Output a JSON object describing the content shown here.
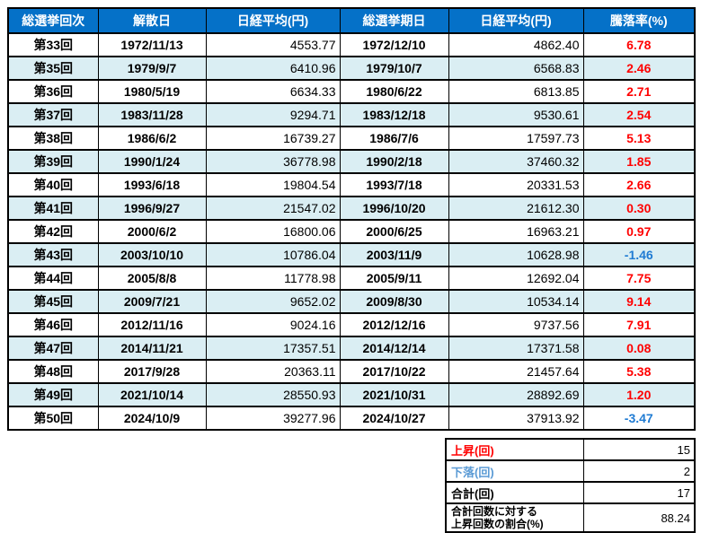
{
  "colors": {
    "header_bg": "#0571C8",
    "header_text": "#FFFFFF",
    "stripe_bg": "#DAEEF3",
    "up_text": "#FF0000",
    "down_text": "#1F7BD3",
    "down_label": "#5B9BD5",
    "border": "#000000"
  },
  "chart_data": {
    "type": "table",
    "columns": [
      "総選挙回次",
      "解散日",
      "日経平均(円)",
      "総選挙期日",
      "日経平均(円)",
      "騰落率(%)"
    ],
    "rows": [
      {
        "no": "第33回",
        "dissolution_date": "1972/11/13",
        "nikkei_dissolution": "4553.77",
        "election_date": "1972/12/10",
        "nikkei_election": "4862.40",
        "change_pct": "6.78",
        "direction": "up"
      },
      {
        "no": "第35回",
        "dissolution_date": "1979/9/7",
        "nikkei_dissolution": "6410.96",
        "election_date": "1979/10/7",
        "nikkei_election": "6568.83",
        "change_pct": "2.46",
        "direction": "up"
      },
      {
        "no": "第36回",
        "dissolution_date": "1980/5/19",
        "nikkei_dissolution": "6634.33",
        "election_date": "1980/6/22",
        "nikkei_election": "6813.85",
        "change_pct": "2.71",
        "direction": "up"
      },
      {
        "no": "第37回",
        "dissolution_date": "1983/11/28",
        "nikkei_dissolution": "9294.71",
        "election_date": "1983/12/18",
        "nikkei_election": "9530.61",
        "change_pct": "2.54",
        "direction": "up"
      },
      {
        "no": "第38回",
        "dissolution_date": "1986/6/2",
        "nikkei_dissolution": "16739.27",
        "election_date": "1986/7/6",
        "nikkei_election": "17597.73",
        "change_pct": "5.13",
        "direction": "up"
      },
      {
        "no": "第39回",
        "dissolution_date": "1990/1/24",
        "nikkei_dissolution": "36778.98",
        "election_date": "1990/2/18",
        "nikkei_election": "37460.32",
        "change_pct": "1.85",
        "direction": "up"
      },
      {
        "no": "第40回",
        "dissolution_date": "1993/6/18",
        "nikkei_dissolution": "19804.54",
        "election_date": "1993/7/18",
        "nikkei_election": "20331.53",
        "change_pct": "2.66",
        "direction": "up"
      },
      {
        "no": "第41回",
        "dissolution_date": "1996/9/27",
        "nikkei_dissolution": "21547.02",
        "election_date": "1996/10/20",
        "nikkei_election": "21612.30",
        "change_pct": "0.30",
        "direction": "up"
      },
      {
        "no": "第42回",
        "dissolution_date": "2000/6/2",
        "nikkei_dissolution": "16800.06",
        "election_date": "2000/6/25",
        "nikkei_election": "16963.21",
        "change_pct": "0.97",
        "direction": "up"
      },
      {
        "no": "第43回",
        "dissolution_date": "2003/10/10",
        "nikkei_dissolution": "10786.04",
        "election_date": "2003/11/9",
        "nikkei_election": "10628.98",
        "change_pct": "-1.46",
        "direction": "down"
      },
      {
        "no": "第44回",
        "dissolution_date": "2005/8/8",
        "nikkei_dissolution": "11778.98",
        "election_date": "2005/9/11",
        "nikkei_election": "12692.04",
        "change_pct": "7.75",
        "direction": "up"
      },
      {
        "no": "第45回",
        "dissolution_date": "2009/7/21",
        "nikkei_dissolution": "9652.02",
        "election_date": "2009/8/30",
        "nikkei_election": "10534.14",
        "change_pct": "9.14",
        "direction": "up"
      },
      {
        "no": "第46回",
        "dissolution_date": "2012/11/16",
        "nikkei_dissolution": "9024.16",
        "election_date": "2012/12/16",
        "nikkei_election": "9737.56",
        "change_pct": "7.91",
        "direction": "up"
      },
      {
        "no": "第47回",
        "dissolution_date": "2014/11/21",
        "nikkei_dissolution": "17357.51",
        "election_date": "2014/12/14",
        "nikkei_election": "17371.58",
        "change_pct": "0.08",
        "direction": "up"
      },
      {
        "no": "第48回",
        "dissolution_date": "2017/9/28",
        "nikkei_dissolution": "20363.11",
        "election_date": "2017/10/22",
        "nikkei_election": "21457.64",
        "change_pct": "5.38",
        "direction": "up"
      },
      {
        "no": "第49回",
        "dissolution_date": "2021/10/14",
        "nikkei_dissolution": "28550.93",
        "election_date": "2021/10/31",
        "nikkei_election": "28892.69",
        "change_pct": "1.20",
        "direction": "up"
      },
      {
        "no": "第50回",
        "dissolution_date": "2024/10/9",
        "nikkei_dissolution": "39277.96",
        "election_date": "2024/10/27",
        "nikkei_election": "37913.92",
        "change_pct": "-3.47",
        "direction": "down"
      }
    ],
    "summary": {
      "rows": [
        {
          "label": "上昇(回)",
          "value": "15",
          "color": "red"
        },
        {
          "label": "下落(回)",
          "value": "2",
          "color": "blue"
        },
        {
          "label": "合計(回)",
          "value": "17",
          "color": "black"
        },
        {
          "label_line1": "合計回数に対する",
          "label_line2": "上昇回数の割合(%)",
          "value": "88.24",
          "color": "black"
        }
      ]
    }
  }
}
